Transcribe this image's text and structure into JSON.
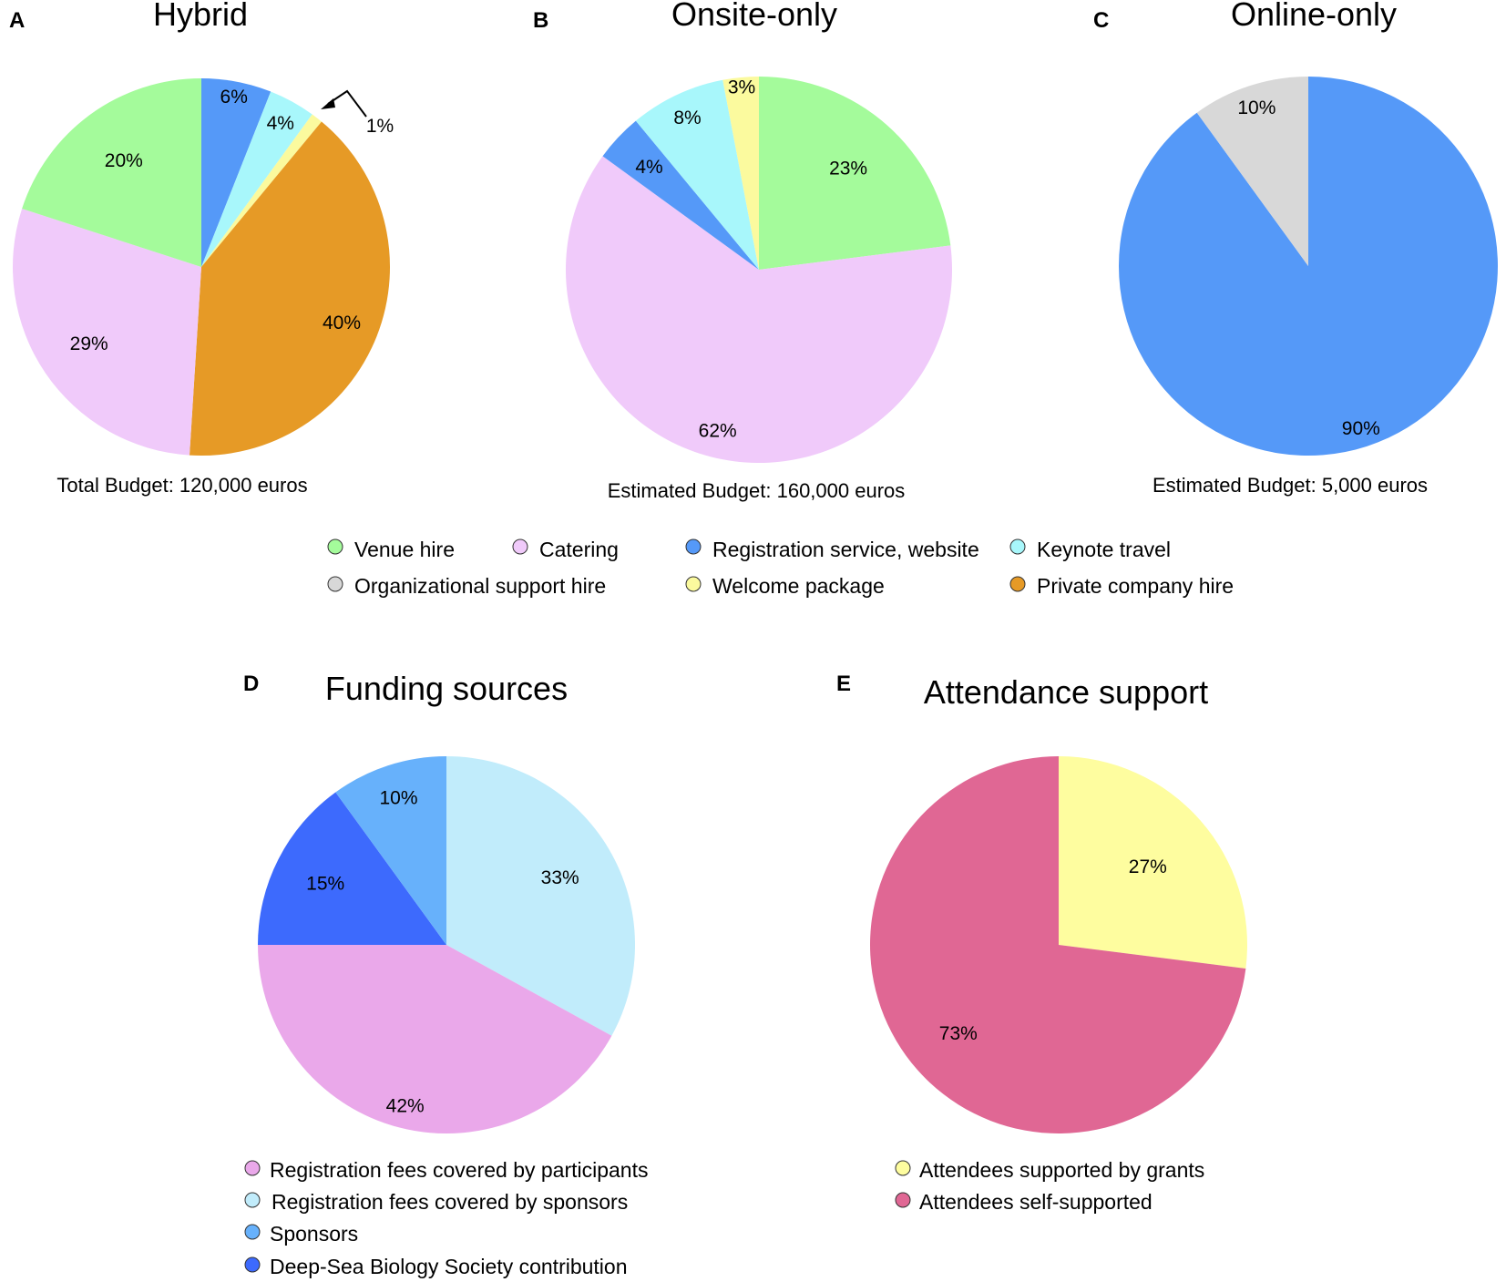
{
  "chart_data": [
    {
      "id": "A",
      "type": "pie",
      "letter": "A",
      "title": "Hybrid",
      "budget_label": "Total Budget: 120,000 euros",
      "slices": [
        {
          "label": "Registration service, website",
          "value": 6,
          "text": "6%",
          "color": "#5599f8"
        },
        {
          "label": "Keynote travel",
          "value": 4,
          "text": "4%",
          "color": "#a8f7fb"
        },
        {
          "label": "Welcome package",
          "value": 1,
          "text": "1%",
          "color": "#fbfa9e"
        },
        {
          "label": "Private company hire",
          "value": 40,
          "text": "40%",
          "color": "#e69a26"
        },
        {
          "label": "Catering",
          "value": 29,
          "text": "29%",
          "color": "#f0cafa"
        },
        {
          "label": "Venue hire",
          "value": 20,
          "text": "20%",
          "color": "#a4fb9b"
        }
      ]
    },
    {
      "id": "B",
      "type": "pie",
      "letter": "B",
      "title": "Onsite-only",
      "budget_label": "Estimated Budget: 160,000 euros",
      "slices": [
        {
          "label": "Venue hire",
          "value": 23,
          "text": "23%",
          "color": "#a4fb9b"
        },
        {
          "label": "Catering",
          "value": 62,
          "text": "62%",
          "color": "#f0cafa"
        },
        {
          "label": "Registration service, website",
          "value": 4,
          "text": "4%",
          "color": "#5599f8"
        },
        {
          "label": "Keynote travel",
          "value": 8,
          "text": "8%",
          "color": "#a8f7fb"
        },
        {
          "label": "Welcome package",
          "value": 3,
          "text": "3%",
          "color": "#fbfa9e"
        }
      ]
    },
    {
      "id": "C",
      "type": "pie",
      "letter": "C",
      "title": "Online-only",
      "budget_label": "Estimated Budget: 5,000 euros",
      "slices": [
        {
          "label": "Registration service, website",
          "value": 90,
          "text": "90%",
          "color": "#5599f8"
        },
        {
          "label": "Organizational support hire",
          "value": 10,
          "text": "10%",
          "color": "#d8d8d8"
        }
      ]
    },
    {
      "id": "D",
      "type": "pie",
      "letter": "D",
      "title": "Funding sources",
      "slices": [
        {
          "label": "Registration fees covered by sponsors",
          "value": 33,
          "text": "33%",
          "color": "#c1ecfb"
        },
        {
          "label": "Registration fees covered by participants",
          "value": 42,
          "text": "42%",
          "color": "#eaa8ea"
        },
        {
          "label": "Deep-Sea Biology Society contribution",
          "value": 15,
          "text": "15%",
          "color": "#3d6afd"
        },
        {
          "label": "Sponsors",
          "value": 10,
          "text": "10%",
          "color": "#67b1fb"
        }
      ],
      "legend": [
        {
          "label": "Registration fees covered by participants",
          "color": "#eaa8ea"
        },
        {
          "label": "Registration fees covered by sponsors",
          "color": "#c1ecfb"
        },
        {
          "label": "Sponsors",
          "color": "#67b1fb"
        },
        {
          "label": "Deep-Sea Biology Society contribution",
          "color": "#3d6afd"
        }
      ]
    },
    {
      "id": "E",
      "type": "pie",
      "letter": "E",
      "title": "Attendance support",
      "slices": [
        {
          "label": "Attendees supported by grants",
          "value": 27,
          "text": "27%",
          "color": "#fefd9f"
        },
        {
          "label": "Attendees self-supported",
          "value": 73,
          "text": "73%",
          "color": "#e06794"
        }
      ],
      "legend": [
        {
          "label": "Attendees supported by grants",
          "color": "#fefd9f"
        },
        {
          "label": "Attendees self-supported",
          "color": "#e06794"
        }
      ]
    }
  ],
  "shared_legend": [
    {
      "label": "Venue hire",
      "color": "#a4fb9b"
    },
    {
      "label": "Catering",
      "color": "#f0cafa"
    },
    {
      "label": "Registration service, website",
      "color": "#5599f8"
    },
    {
      "label": "Keynote travel",
      "color": "#a8f7fb"
    },
    {
      "label": "Organizational support hire",
      "color": "#d8d8d8"
    },
    {
      "label": "Welcome package",
      "color": "#fbfa9e"
    },
    {
      "label": "Private company hire",
      "color": "#e69a26"
    }
  ]
}
